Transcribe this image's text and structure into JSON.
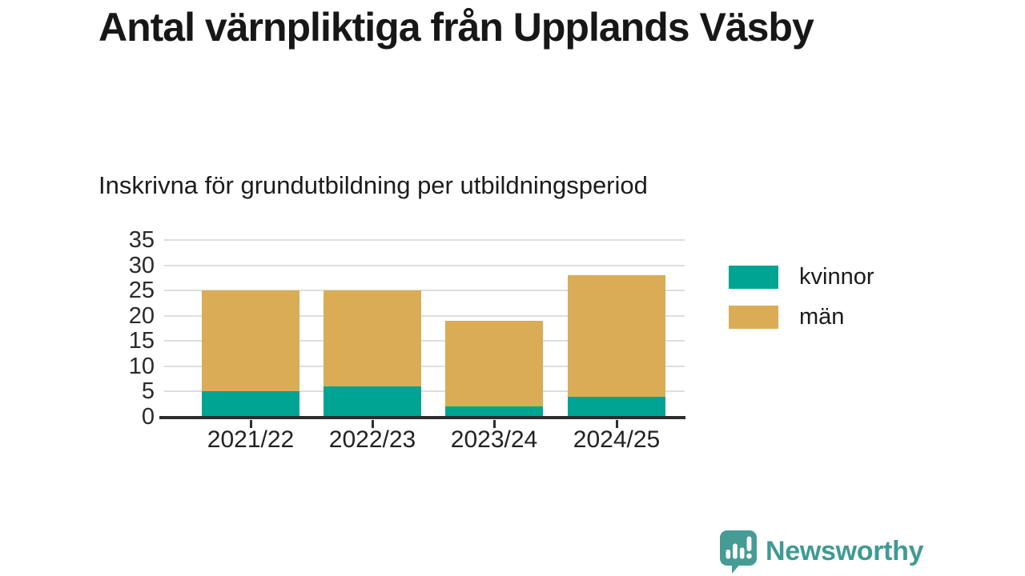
{
  "page": {
    "title": "Antal värnpliktiga från Upplands Väsby",
    "subtitle": "Inskrivna för grundutbildning per utbildningsperiod"
  },
  "chart_data": {
    "type": "bar",
    "stacked": true,
    "title": "Antal värnpliktiga från Upplands Väsby",
    "subtitle": "Inskrivna för grundutbildning per utbildningsperiod",
    "categories": [
      "2021/22",
      "2022/23",
      "2023/24",
      "2024/25"
    ],
    "series": [
      {
        "name": "kvinnor",
        "color": "#00a493",
        "values": [
          5,
          6,
          2,
          4
        ]
      },
      {
        "name": "män",
        "color": "#d9ac55",
        "values": [
          20,
          19,
          17,
          24
        ]
      }
    ],
    "totals": [
      25,
      25,
      19,
      28
    ],
    "xlabel": "",
    "ylabel": "",
    "ylim": [
      0,
      35
    ],
    "yticks": [
      0,
      5,
      10,
      15,
      20,
      25,
      30,
      35
    ],
    "grid": true,
    "legend_position": "right",
    "gridline_color": "#dedede",
    "axis_color": "#2d2d2d"
  },
  "branding": {
    "logo_text": "Newsworthy",
    "logo_color": "#3f9a94"
  }
}
